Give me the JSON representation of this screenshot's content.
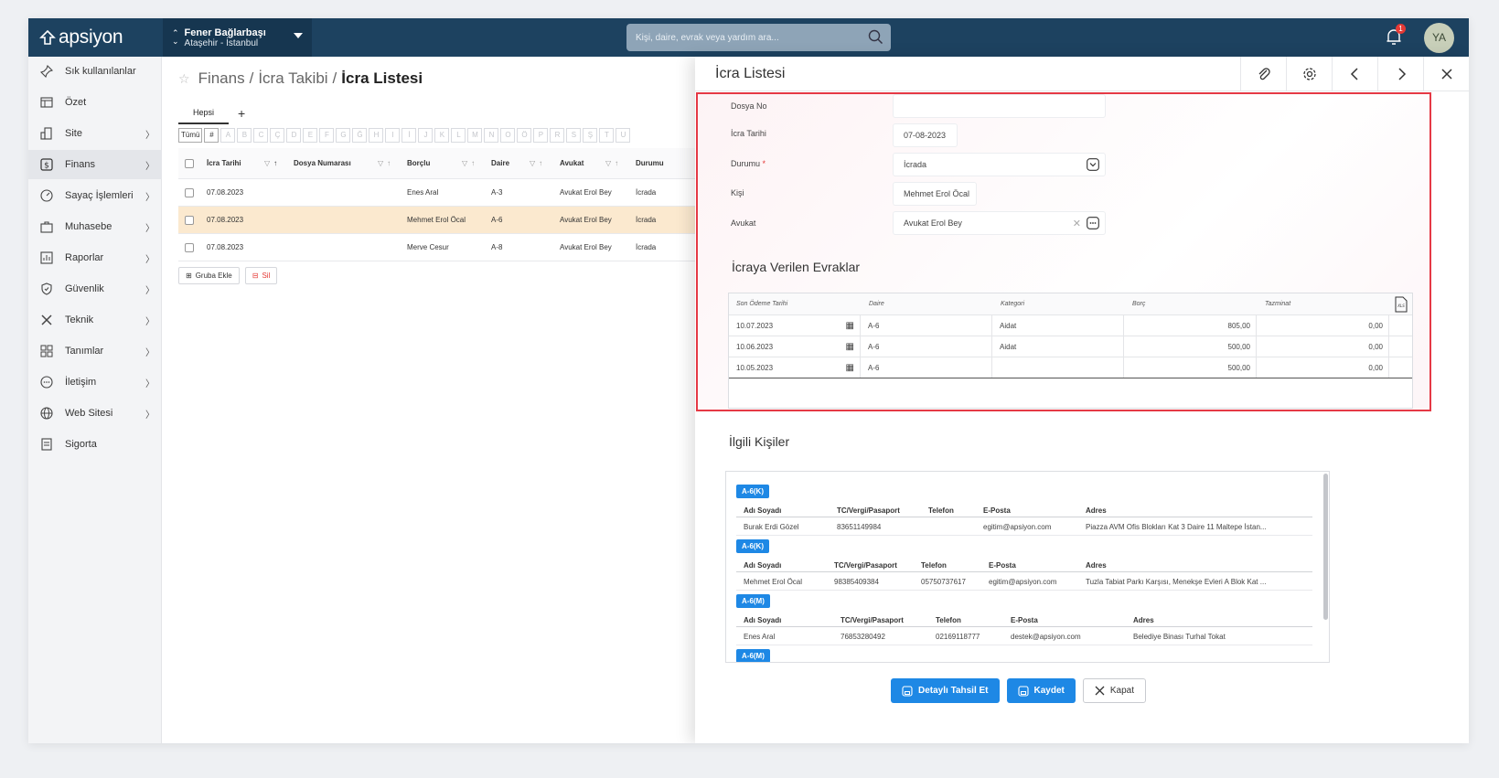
{
  "app": {
    "logo": "apsiyon",
    "site_name": "Fener Bağlarbaşı",
    "site_location": "Ataşehir - İstanbul",
    "search_placeholder": "Kişi, daire, evrak veya yardım ara...",
    "notification_count": "1",
    "user_initials": "YA"
  },
  "sidebar": {
    "items": [
      {
        "label": "Sık kullanılanlar",
        "icon": "pin-icon",
        "arrow": false
      },
      {
        "label": "Özet",
        "icon": "table-icon",
        "arrow": false
      },
      {
        "label": "Site",
        "icon": "building-icon",
        "arrow": true
      },
      {
        "label": "Finans",
        "icon": "finance-icon",
        "arrow": true,
        "active": true
      },
      {
        "label": "Sayaç İşlemleri",
        "icon": "gauge-icon",
        "arrow": true
      },
      {
        "label": "Muhasebe",
        "icon": "briefcase-icon",
        "arrow": true
      },
      {
        "label": "Raporlar",
        "icon": "report-icon",
        "arrow": true
      },
      {
        "label": "Güvenlik",
        "icon": "shield-icon",
        "arrow": true
      },
      {
        "label": "Teknik",
        "icon": "tools-icon",
        "arrow": true
      },
      {
        "label": "Tanımlar",
        "icon": "grid-icon",
        "arrow": true
      },
      {
        "label": "İletişim",
        "icon": "chat-icon",
        "arrow": true
      },
      {
        "label": "Web Sitesi",
        "icon": "globe-icon",
        "arrow": true
      },
      {
        "label": "Sigorta",
        "icon": "insurance-icon",
        "arrow": false
      }
    ]
  },
  "main": {
    "breadcrumb": {
      "part1": "Finans",
      "sep": "/",
      "part2": "İcra Takibi",
      "part3": "İcra Listesi"
    },
    "tab_all": "Hepsi",
    "tab_add": "+",
    "alpha": [
      "Tümü",
      "#",
      "A",
      "B",
      "C",
      "Ç",
      "D",
      "E",
      "F",
      "G",
      "Ğ",
      "H",
      "I",
      "İ",
      "J",
      "K",
      "L",
      "M",
      "N",
      "O",
      "Ö",
      "P",
      "R",
      "S",
      "Ş",
      "T",
      "U"
    ],
    "columns": [
      "İcra Tarihi",
      "Dosya Numarası",
      "Borçlu",
      "Daire",
      "Avukat",
      "Durumu"
    ],
    "rows": [
      {
        "date": "07.08.2023",
        "file": "",
        "debtor": "Enes Aral",
        "unit": "A-3",
        "lawyer": "Avukat Erol Bey",
        "status": "İcrada"
      },
      {
        "date": "07.08.2023",
        "file": "",
        "debtor": "Mehmet Erol Öcal",
        "unit": "A-6",
        "lawyer": "Avukat Erol Bey",
        "status": "İcrada",
        "selected": true
      },
      {
        "date": "07.08.2023",
        "file": "",
        "debtor": "Merve Cesur",
        "unit": "A-8",
        "lawyer": "Avukat Erol Bey",
        "status": "İcrada"
      }
    ],
    "add_group_label": "Gruba Ekle",
    "delete_label": "Sil"
  },
  "panel": {
    "title": "İcra Listesi",
    "fields": {
      "file_no_label": "Dosya No",
      "file_no_value": "",
      "date_label": "İcra Tarihi",
      "date_value": "07-08-2023",
      "status_label": "Durumu",
      "status_required": "*",
      "status_value": "İcrada",
      "person_label": "Kişi",
      "person_value": "Mehmet Erol Öcal",
      "lawyer_label": "Avukat",
      "lawyer_value": "Avukat Erol Bey"
    },
    "docs_title": "İcraya Verilen Evraklar",
    "docs_columns": [
      "Son Ödeme Tarihi",
      "Daire",
      "Kategori",
      "Borç",
      "Tazminat"
    ],
    "docs_rows": [
      {
        "date": "10.07.2023",
        "unit": "A-6",
        "category": "Aidat",
        "debt": "805,00",
        "comp": "0,00"
      },
      {
        "date": "10.06.2023",
        "unit": "A-6",
        "category": "Aidat",
        "debt": "500,00",
        "comp": "0,00"
      },
      {
        "date": "10.05.2023",
        "unit": "A-6",
        "category": "",
        "debt": "500,00",
        "comp": "0,00"
      }
    ],
    "xls_label": "XLS",
    "people_title": "İlgili Kişiler",
    "people_columns": [
      "Adı Soyadı",
      "TC/Vergi/Pasaport",
      "Telefon",
      "E-Posta",
      "Adres"
    ],
    "people": [
      {
        "tag": "A-6(K)",
        "name": "Burak Erdi Gözel",
        "tc": "83651149984",
        "phone": "",
        "email": "egitim@apsiyon.com",
        "address": "Piazza AVM Ofis Blokları Kat 3 Daire 11 Maltepe İstan..."
      },
      {
        "tag": "A-6(K)",
        "name": "Mehmet Erol Öcal",
        "tc": "98385409384",
        "phone": "05750737617",
        "email": "egitim@apsiyon.com",
        "address": "Tuzla Tabiat Parkı Karşısı, Menekşe Evleri A Blok Kat ..."
      },
      {
        "tag": "A-6(M)",
        "name": "Enes Aral",
        "tc": "76853280492",
        "phone": "02169118777",
        "email": "destek@apsiyon.com",
        "address": "Belediye Binası Turhal Tokat"
      },
      {
        "tag": "A-6(M)"
      }
    ],
    "btn_detail": "Detaylı Tahsil Et",
    "btn_save": "Kaydet",
    "btn_close": "Kapat"
  }
}
